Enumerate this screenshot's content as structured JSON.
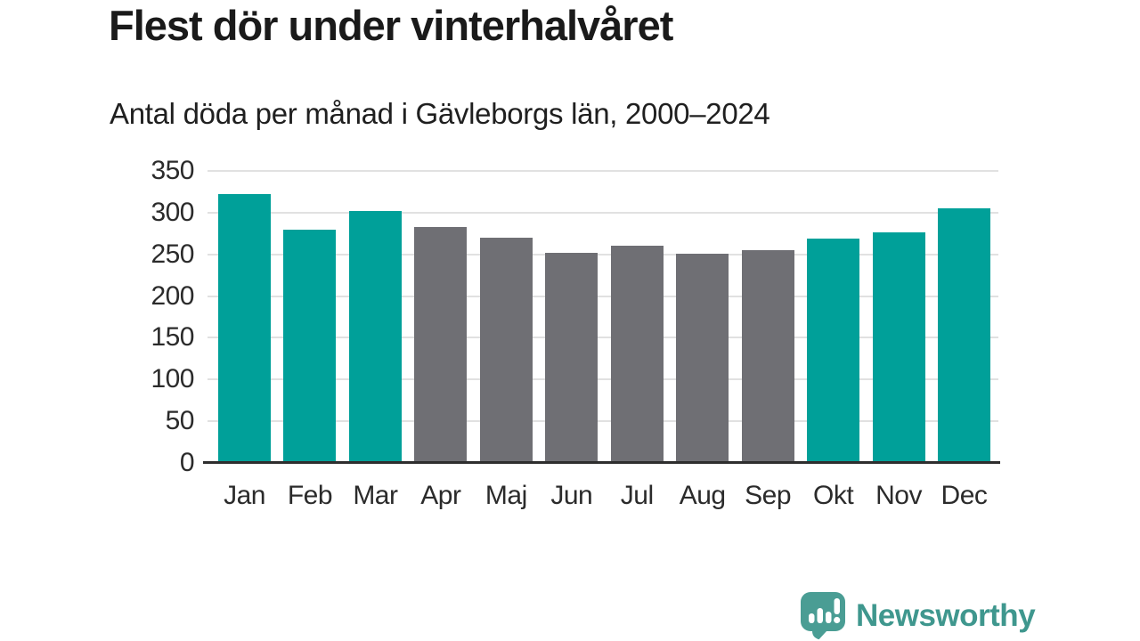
{
  "chart": {
    "title": "Flest dör under vinterhalvåret",
    "subtitle": "Antal döda per månad i Gävleborgs län, 2000–2024"
  },
  "chart_data": {
    "type": "bar",
    "title": "Flest dör under vinterhalvåret",
    "subtitle": "Antal döda per månad i Gävleborgs län, 2000–2024",
    "categories": [
      "Jan",
      "Feb",
      "Mar",
      "Apr",
      "Maj",
      "Jun",
      "Jul",
      "Aug",
      "Sep",
      "Okt",
      "Nov",
      "Dec"
    ],
    "values": [
      322,
      280,
      302,
      283,
      270,
      252,
      260,
      251,
      255,
      269,
      276,
      305
    ],
    "xlabel": "",
    "ylabel": "",
    "ylim": [
      0,
      350
    ],
    "yticks": [
      0,
      50,
      100,
      150,
      200,
      250,
      300,
      350
    ],
    "grid": "horizontal",
    "legend": "none",
    "colors": {
      "winter": "#00a099",
      "summer": "#6f6f74"
    },
    "bar_color_group": [
      "winter",
      "winter",
      "winter",
      "summer",
      "summer",
      "summer",
      "summer",
      "summer",
      "summer",
      "winter",
      "winter",
      "winter"
    ],
    "gridline_color": "#e1e1e1",
    "axis_line_color": "#2e2e2e"
  },
  "logo": {
    "text": "Newsworthy",
    "text_color": "#3f978e",
    "icon": "newsworthy-speech-bubble-chart-icon",
    "icon_color": "#4a9d94"
  }
}
